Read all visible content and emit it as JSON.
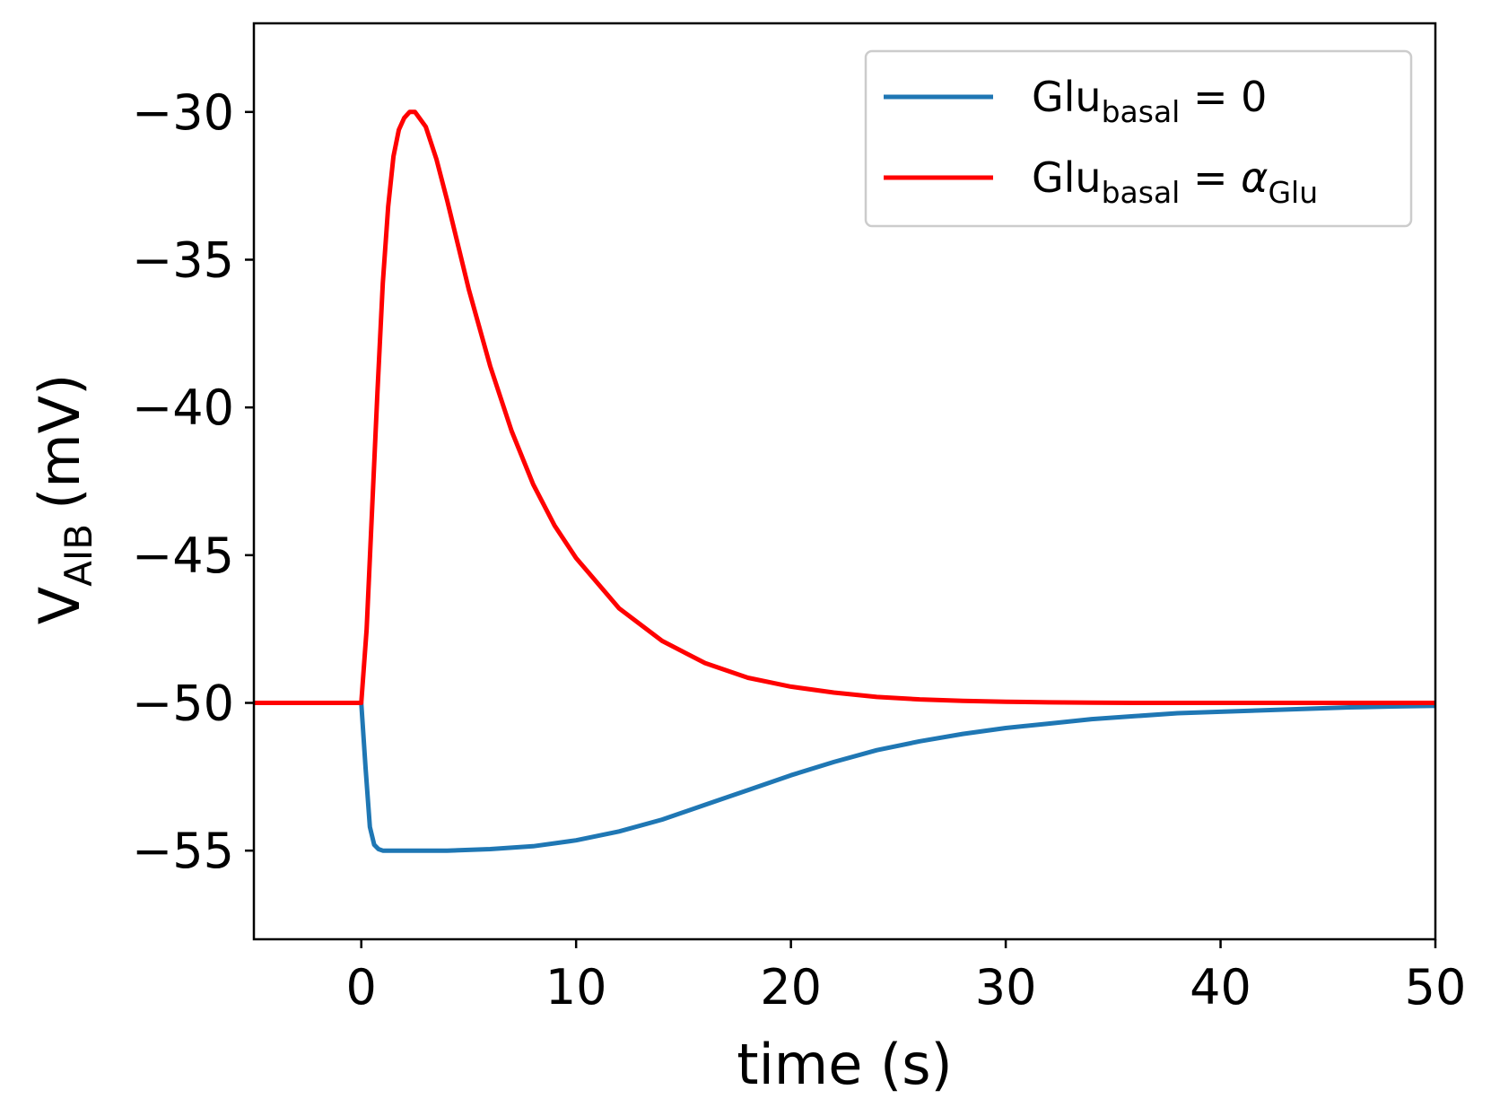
{
  "chart_data": {
    "type": "line",
    "title": "",
    "xlabel": "time (s)",
    "ylabel_main": "V",
    "ylabel_sub": "AIB",
    "ylabel_unit": "(mV)",
    "xlim": [
      -5,
      50
    ],
    "ylim": [
      -58,
      -27
    ],
    "xticks": [
      0,
      10,
      20,
      30,
      40,
      50
    ],
    "xtick_labels": [
      "0",
      "10",
      "20",
      "30",
      "40",
      "50"
    ],
    "yticks": [
      -30,
      -35,
      -40,
      -45,
      -50,
      -55
    ],
    "ytick_labels": [
      "−30",
      "−35",
      "−40",
      "−45",
      "−50",
      "−55"
    ],
    "legend_position": "top-right",
    "series": [
      {
        "name": "Glu_basal = 0",
        "label_main": "Glu",
        "label_sub": "basal",
        "label_rest": " = 0",
        "label_greek": "",
        "label_greek_sub": "",
        "color": "#1f77b4",
        "x": [
          -5,
          0,
          0.2,
          0.4,
          0.6,
          0.8,
          1.0,
          1.5,
          2,
          4,
          6,
          8,
          10,
          12,
          14,
          16,
          18,
          20,
          22,
          24,
          26,
          28,
          30,
          32,
          34,
          36,
          38,
          40,
          42,
          44,
          46,
          48,
          50
        ],
        "values": [
          -50,
          -50,
          -52.2,
          -54.2,
          -54.8,
          -54.95,
          -55,
          -55,
          -55,
          -55,
          -54.95,
          -54.85,
          -54.65,
          -54.35,
          -53.95,
          -53.45,
          -52.95,
          -52.45,
          -52.0,
          -51.6,
          -51.3,
          -51.05,
          -50.85,
          -50.7,
          -50.55,
          -50.45,
          -50.35,
          -50.3,
          -50.25,
          -50.2,
          -50.15,
          -50.12,
          -50.1
        ]
      },
      {
        "name": "Glu_basal = alpha_Glu",
        "label_main": "Glu",
        "label_sub": "basal",
        "label_rest": " = ",
        "label_greek": "α",
        "label_greek_sub": "Glu",
        "color": "#ff0000",
        "x": [
          -5,
          0,
          0.25,
          0.5,
          0.75,
          1.0,
          1.25,
          1.5,
          1.75,
          2.0,
          2.25,
          2.5,
          3,
          3.5,
          4,
          5,
          6,
          7,
          8,
          9,
          10,
          12,
          14,
          16,
          18,
          20,
          22,
          24,
          26,
          28,
          30,
          32,
          34,
          36,
          38,
          40,
          42,
          44,
          46,
          48,
          50
        ],
        "values": [
          -50,
          -50,
          -47.5,
          -43.5,
          -39.5,
          -35.8,
          -33.2,
          -31.5,
          -30.6,
          -30.2,
          -30.0,
          -30.0,
          -30.5,
          -31.6,
          -33.0,
          -36.0,
          -38.6,
          -40.8,
          -42.6,
          -44.0,
          -45.1,
          -46.8,
          -47.9,
          -48.65,
          -49.15,
          -49.45,
          -49.65,
          -49.8,
          -49.88,
          -49.93,
          -49.96,
          -49.98,
          -49.99,
          -50.0,
          -50.0,
          -50.0,
          -50.0,
          -50.0,
          -50.0,
          -50.0,
          -50.0
        ]
      }
    ]
  }
}
